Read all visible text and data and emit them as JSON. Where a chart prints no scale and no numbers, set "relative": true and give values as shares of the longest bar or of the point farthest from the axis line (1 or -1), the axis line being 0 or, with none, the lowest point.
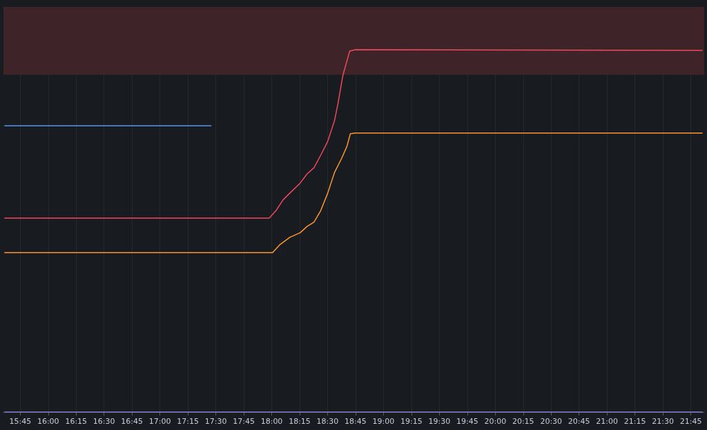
{
  "chart_data": {
    "type": "line",
    "relative": true,
    "tick_labels": "x",
    "grid": "x",
    "marker": "none",
    "line_style": "solid",
    "xlim": [
      15.6,
      21.87
    ],
    "xticks": [
      {
        "value": 15.75,
        "label": "15:45"
      },
      {
        "value": 16,
        "label": "16:00"
      },
      {
        "value": 16.25,
        "label": "16:15"
      },
      {
        "value": 16.5,
        "label": "16:30"
      },
      {
        "value": 16.75,
        "label": "16:45"
      },
      {
        "value": 17,
        "label": "17:00"
      },
      {
        "value": 17.25,
        "label": "17:15"
      },
      {
        "value": 17.5,
        "label": "17:30"
      },
      {
        "value": 17.75,
        "label": "17:45"
      },
      {
        "value": 18,
        "label": "18:00"
      },
      {
        "value": 18.25,
        "label": "18:15"
      },
      {
        "value": 18.5,
        "label": "18:30"
      },
      {
        "value": 18.75,
        "label": "18:45"
      },
      {
        "value": 19,
        "label": "19:00"
      },
      {
        "value": 19.25,
        "label": "19:15"
      },
      {
        "value": 19.5,
        "label": "19:30"
      },
      {
        "value": 19.75,
        "label": "19:45"
      },
      {
        "value": 20,
        "label": "20:00"
      },
      {
        "value": 20.25,
        "label": "20:15"
      },
      {
        "value": 20.5,
        "label": "20:30"
      },
      {
        "value": 20.75,
        "label": "20:45"
      },
      {
        "value": 21,
        "label": "21:00"
      },
      {
        "value": 21.25,
        "label": "21:15"
      },
      {
        "value": 21.5,
        "label": "21:30"
      },
      {
        "value": 21.75,
        "label": "21:45"
      }
    ],
    "bands": [
      {
        "axis": "y",
        "from": 0.931,
        "to": 1.118,
        "color": "#3e2429"
      }
    ],
    "series": [
      {
        "color": "#f2495c",
        "x": [
          15.608,
          17.978,
          18.039,
          18.1,
          18.162,
          18.255,
          18.316,
          18.378,
          18.439,
          18.501,
          18.562,
          18.593,
          18.636,
          18.667,
          18.698,
          18.747,
          21.855
        ],
        "values": [
          0.535,
          0.535,
          0.556,
          0.585,
          0.604,
          0.632,
          0.657,
          0.674,
          0.709,
          0.747,
          0.804,
          0.851,
          0.928,
          0.962,
          0.996,
          1.0,
          0.998
        ]
      },
      {
        "color": "#ff9830",
        "x": [
          15.608,
          18.008,
          18.07,
          18.162,
          18.255,
          18.316,
          18.378,
          18.439,
          18.501,
          18.562,
          18.624,
          18.673,
          18.704,
          18.747,
          21.855
        ],
        "values": [
          0.44,
          0.44,
          0.461,
          0.482,
          0.495,
          0.512,
          0.524,
          0.556,
          0.604,
          0.661,
          0.699,
          0.733,
          0.768,
          0.77,
          0.77
        ]
      },
      {
        "color": "#5794f2",
        "x": [
          15.608,
          17.461
        ],
        "values": [
          0.79,
          0.79
        ]
      },
      {
        "color": "#8f7ad9",
        "x": [
          15.608,
          21.855
        ],
        "values": [
          0,
          0
        ]
      }
    ]
  }
}
